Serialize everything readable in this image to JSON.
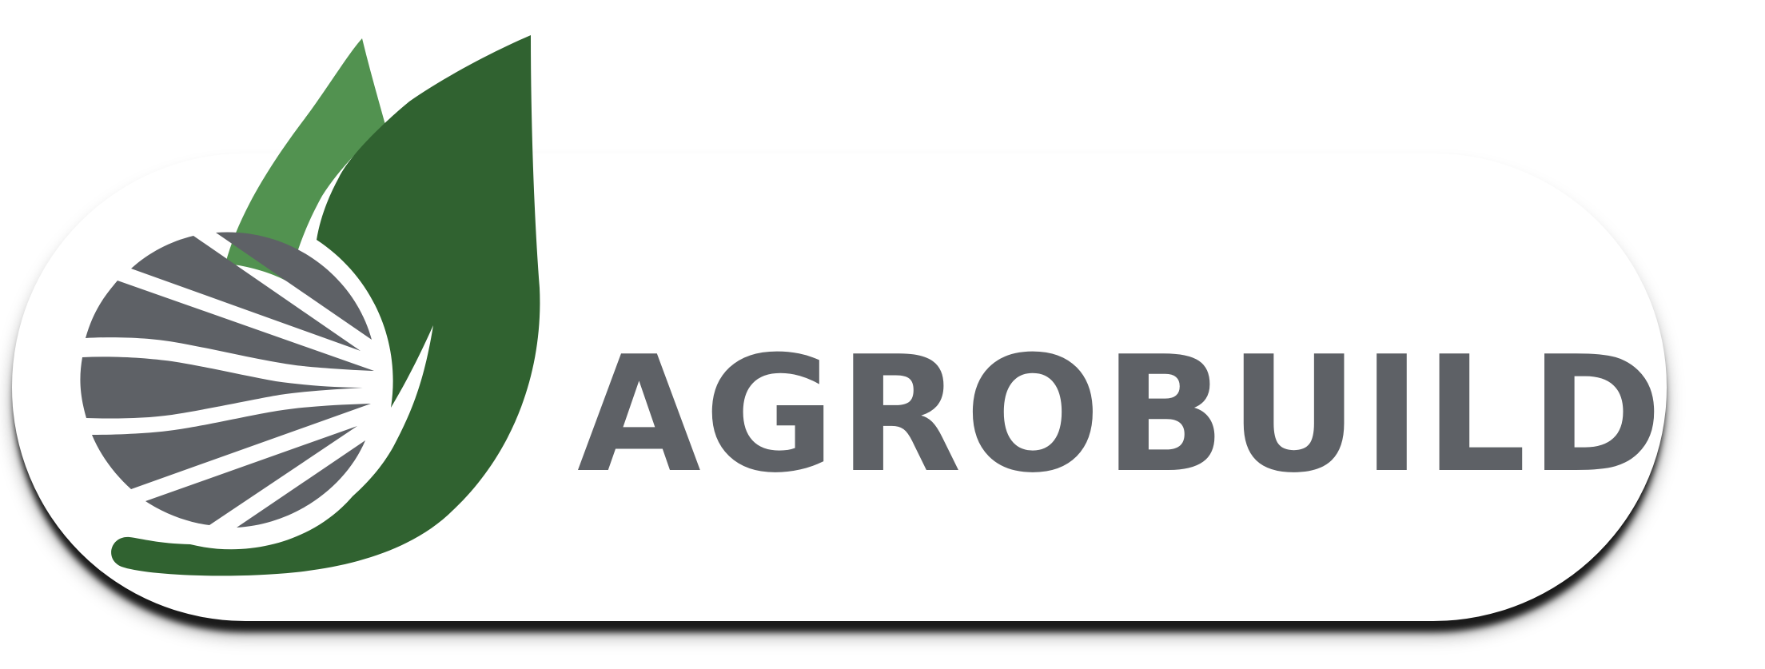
{
  "logo": {
    "wordmark": "AGROBUILD",
    "colors": {
      "leaf_dark": "#306230",
      "leaf_light": "#529250",
      "gray": "#5e6166",
      "background": "#ffffff"
    },
    "icons": [
      "leaf-icon",
      "sun-rays-icon"
    ]
  }
}
